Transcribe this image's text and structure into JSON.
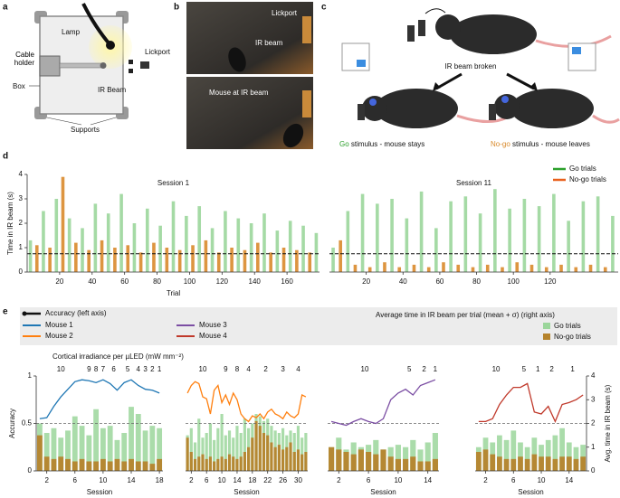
{
  "panel_labels": [
    "a",
    "b",
    "c",
    "d",
    "e"
  ],
  "panel_a": {
    "lamp": "Lamp",
    "cable_holder": "Cable holder",
    "box": "Box",
    "lickport": "Lickport",
    "ir_beam": "IR Beam",
    "supports": "Supports"
  },
  "panel_b": {
    "lickport": "Lickport",
    "ir_beam": "IR beam",
    "mouse_at_beam": "Mouse at IR beam"
  },
  "panel_c": {
    "ir_beam_broken": "IR beam broken",
    "go_word": "Go",
    "go_text": "stimulus - mouse stays",
    "nogo_word": "No-go",
    "nogo_text": "stimulus - mouse leaves"
  },
  "legend_e": {
    "accuracy_label": "Accuracy (left axis)",
    "time_label": "Average time in IR beam per trial (mean + σ) (right axis)",
    "go": {
      "name": "Go trials",
      "color": "#9bd69b"
    },
    "nogo": {
      "name": "No-go trials",
      "color": "#b5832c"
    }
  },
  "irradiance_title": "Cortical irradiance per µLED (mW mm⁻²)",
  "chart_data": [
    {
      "type": "bar",
      "title": "Session 1",
      "ylabel": "Time in IR beam (s)",
      "xlabel": "Trial",
      "xlim": [
        0,
        180
      ],
      "xticks": [
        20,
        40,
        60,
        80,
        100,
        120,
        140,
        160
      ],
      "ylim": [
        0,
        4
      ],
      "yticks": [
        0,
        1,
        2,
        3,
        4
      ],
      "reference_line": 0.75,
      "series": [
        {
          "color": "#9bd69b",
          "x": [
            2,
            10,
            18,
            26,
            34,
            42,
            50,
            58,
            66,
            74,
            82,
            90,
            98,
            106,
            114,
            122,
            130,
            138,
            146,
            154,
            162,
            170,
            178
          ],
          "values": [
            1.3,
            2.5,
            3.0,
            2.2,
            1.8,
            2.8,
            2.4,
            3.2,
            2.0,
            2.6,
            1.9,
            2.9,
            2.3,
            2.7,
            1.8,
            2.5,
            2.2,
            2.0,
            2.4,
            1.7,
            2.1,
            1.9,
            1.6
          ]
        },
        {
          "color": "#d98a2b",
          "x": [
            6,
            14,
            22,
            30,
            38,
            46,
            54,
            62,
            70,
            78,
            86,
            94,
            102,
            110,
            118,
            126,
            134,
            142,
            150,
            158,
            166,
            174
          ],
          "values": [
            1.1,
            1.0,
            3.9,
            1.2,
            0.9,
            1.3,
            1.0,
            1.1,
            0.8,
            1.2,
            1.0,
            0.9,
            1.1,
            1.3,
            0.8,
            1.0,
            0.9,
            1.2,
            0.8,
            1.0,
            0.9,
            0.8
          ]
        }
      ]
    },
    {
      "type": "bar",
      "title": "Session 11",
      "legend": "upper right",
      "xlim": [
        0,
        157
      ],
      "xticks": [
        20,
        40,
        60,
        80,
        100,
        120
      ],
      "ylim": [
        0,
        4
      ],
      "reference_line": 0.75,
      "series": [
        {
          "name": "Go trials",
          "color": "#2ca02c",
          "bar_color": "#9bd69b",
          "x": [
            2,
            10,
            18,
            26,
            34,
            42,
            50,
            58,
            66,
            74,
            82,
            90,
            98,
            106,
            114,
            122,
            130,
            138,
            146,
            154
          ],
          "values": [
            1.0,
            2.5,
            3.2,
            2.8,
            3.0,
            2.2,
            3.3,
            1.8,
            2.9,
            3.1,
            2.4,
            3.4,
            2.6,
            3.0,
            2.7,
            3.2,
            2.1,
            2.9,
            3.1,
            2.3
          ]
        },
        {
          "name": "No-go trials",
          "color": "#e8601c",
          "bar_color": "#d98a2b",
          "x": [
            6,
            14,
            22,
            30,
            38,
            46,
            54,
            62,
            70,
            78,
            86,
            94,
            102,
            110,
            118,
            126,
            134,
            142,
            150
          ],
          "values": [
            1.3,
            0.3,
            0.2,
            0.4,
            0.2,
            0.3,
            0.2,
            0.4,
            0.3,
            0.2,
            0.3,
            0.2,
            0.4,
            0.3,
            0.2,
            0.3,
            0.2,
            0.3,
            0.2
          ]
        }
      ]
    },
    {
      "type": "bar_line",
      "name": "Mouse 1",
      "color": "#1f77b4",
      "xlabel": "Session",
      "ylabel": "Accuracy",
      "xlim": [
        0.5,
        18.5
      ],
      "xticks": [
        2,
        6,
        10,
        14,
        18
      ],
      "ylim": [
        0,
        1
      ],
      "yticks": [
        0,
        0.5,
        1
      ],
      "y2lim": [
        0,
        4
      ],
      "reference_line": 0.5,
      "irradiance": [
        {
          "value": 10,
          "session": 1
        },
        {
          "value": 9,
          "session": 8
        },
        {
          "value": 8,
          "session": 9
        },
        {
          "value": 7,
          "session": 10
        },
        {
          "value": 6,
          "session": 11
        },
        {
          "value": 5,
          "session": 13
        },
        {
          "value": 4,
          "session": 15
        },
        {
          "value": 3,
          "session": 16
        },
        {
          "value": 2,
          "session": 17
        },
        {
          "value": 1,
          "session": 18
        }
      ],
      "x": [
        1,
        2,
        3,
        4,
        5,
        6,
        7,
        8,
        9,
        10,
        11,
        12,
        13,
        14,
        15,
        16,
        17,
        18
      ],
      "accuracy": [
        0.55,
        0.56,
        0.68,
        0.78,
        0.86,
        0.94,
        0.96,
        0.95,
        0.93,
        0.96,
        0.92,
        0.85,
        0.93,
        0.96,
        0.9,
        0.86,
        0.85,
        0.82
      ],
      "go": [
        2.0,
        1.6,
        1.8,
        1.4,
        1.7,
        2.3,
        1.9,
        1.5,
        2.6,
        1.8,
        1.9,
        1.3,
        1.6,
        2.7,
        2.4,
        1.7,
        1.9,
        1.8
      ],
      "nogo": [
        1.5,
        0.6,
        0.5,
        0.6,
        0.5,
        0.4,
        0.5,
        0.4,
        0.4,
        0.5,
        0.4,
        0.5,
        0.4,
        0.5,
        0.4,
        0.4,
        0.3,
        0.5
      ]
    },
    {
      "type": "bar_line",
      "name": "Mouse 2",
      "color": "#ff7f0e",
      "xlabel": "Session",
      "xlim": [
        0.5,
        32.5
      ],
      "xticks": [
        2,
        6,
        10,
        14,
        18,
        22,
        26,
        30
      ],
      "ylim": [
        0,
        1
      ],
      "y2lim": [
        0,
        4
      ],
      "reference_line": 0.5,
      "irradiance": [
        {
          "value": 10,
          "session": 1
        },
        {
          "value": 9,
          "session": 10
        },
        {
          "value": 8,
          "session": 13
        },
        {
          "value": 4,
          "session": 16
        },
        {
          "value": 2,
          "session": 19
        },
        {
          "value": 3,
          "session": 25
        },
        {
          "value": 4,
          "session": 28
        }
      ],
      "x": [
        1,
        2,
        3,
        4,
        5,
        6,
        7,
        8,
        9,
        10,
        11,
        12,
        13,
        14,
        15,
        16,
        17,
        18,
        19,
        20,
        21,
        22,
        23,
        24,
        25,
        26,
        27,
        28,
        29,
        30,
        31,
        32
      ],
      "accuracy": [
        0.82,
        0.9,
        0.94,
        0.92,
        0.78,
        0.76,
        0.6,
        0.85,
        0.9,
        0.72,
        0.8,
        0.7,
        0.82,
        0.75,
        0.6,
        0.55,
        0.52,
        0.58,
        0.56,
        0.6,
        0.55,
        0.62,
        0.65,
        0.6,
        0.58,
        0.55,
        0.62,
        0.58,
        0.56,
        0.6,
        0.8,
        0.78
      ],
      "go": [
        1.5,
        1.8,
        1.2,
        2.2,
        1.4,
        1.6,
        2.0,
        1.3,
        1.8,
        2.4,
        1.5,
        1.7,
        1.4,
        1.9,
        1.6,
        2.2,
        1.8,
        2.0,
        2.4,
        2.3,
        2.1,
        2.2,
        1.9,
        1.7,
        1.6,
        1.8,
        1.5,
        1.7,
        1.6,
        1.9,
        1.4,
        1.6
      ],
      "nogo": [
        1.4,
        0.8,
        0.5,
        0.6,
        0.7,
        0.5,
        0.6,
        0.4,
        0.5,
        0.6,
        0.5,
        0.7,
        0.6,
        0.5,
        0.6,
        0.8,
        1.0,
        1.4,
        2.1,
        1.9,
        1.6,
        1.5,
        1.2,
        1.0,
        1.1,
        0.9,
        1.0,
        1.2,
        0.8,
        0.9,
        0.7,
        0.8
      ]
    },
    {
      "type": "bar_line",
      "name": "Mouse 3",
      "color": "#7b4ea3",
      "xlabel": "Session",
      "xlim": [
        0.5,
        15.5
      ],
      "xticks": [
        2,
        6,
        10,
        14
      ],
      "ylim": [
        0,
        1
      ],
      "y2lim": [
        0,
        4
      ],
      "reference_line": 0.5,
      "irradiance": [
        {
          "value": 10,
          "session": 1
        },
        {
          "value": 5,
          "session": 11
        },
        {
          "value": 2,
          "session": 13
        },
        {
          "value": 1,
          "session": 15
        }
      ],
      "x": [
        1,
        2,
        3,
        4,
        5,
        6,
        7,
        8,
        9,
        10,
        11,
        12,
        13,
        14,
        15
      ],
      "accuracy": [
        0.52,
        0.5,
        0.48,
        0.52,
        0.55,
        0.52,
        0.5,
        0.55,
        0.75,
        0.82,
        0.86,
        0.8,
        0.9,
        0.93,
        0.96
      ],
      "go": [
        1.0,
        1.4,
        0.9,
        1.2,
        1.0,
        1.1,
        1.3,
        0.9,
        1.0,
        1.1,
        1.0,
        1.3,
        0.9,
        1.2,
        1.6
      ],
      "nogo": [
        1.0,
        0.9,
        0.8,
        0.7,
        0.9,
        0.8,
        0.7,
        0.9,
        0.6,
        0.5,
        0.5,
        0.6,
        0.4,
        0.4,
        0.5
      ]
    },
    {
      "type": "bar_line",
      "name": "Mouse 4",
      "color": "#c0392b",
      "xlabel": "Session",
      "y2label": "Avg. time in IR beam (s)",
      "xlim": [
        0.5,
        16.5
      ],
      "xticks": [
        2,
        6,
        10,
        14
      ],
      "ylim": [
        0,
        1
      ],
      "y2lim": [
        0,
        4
      ],
      "y2ticks": [
        0,
        1,
        2,
        3,
        4
      ],
      "reference_line": 0.5,
      "irradiance": [
        {
          "value": 10,
          "session": 1
        },
        {
          "value": 5,
          "session": 7
        },
        {
          "value": 1,
          "session": 9
        },
        {
          "value": 2,
          "session": 11
        },
        {
          "value": 1,
          "session": 13
        }
      ],
      "x": [
        1,
        2,
        3,
        4,
        5,
        6,
        7,
        8,
        9,
        10,
        11,
        12,
        13,
        14,
        15,
        16
      ],
      "accuracy": [
        0.52,
        0.52,
        0.55,
        0.7,
        0.8,
        0.88,
        0.88,
        0.92,
        0.62,
        0.6,
        0.68,
        0.52,
        0.7,
        0.72,
        0.75,
        0.8
      ],
      "go": [
        1.0,
        1.4,
        1.2,
        1.5,
        1.3,
        1.7,
        1.2,
        1.0,
        1.4,
        1.1,
        1.3,
        1.5,
        1.8,
        1.2,
        1.0,
        1.1
      ],
      "nogo": [
        0.8,
        0.9,
        0.7,
        0.6,
        0.5,
        0.5,
        0.6,
        0.5,
        0.7,
        0.6,
        0.6,
        0.5,
        0.6,
        0.6,
        0.5,
        0.6
      ]
    }
  ]
}
